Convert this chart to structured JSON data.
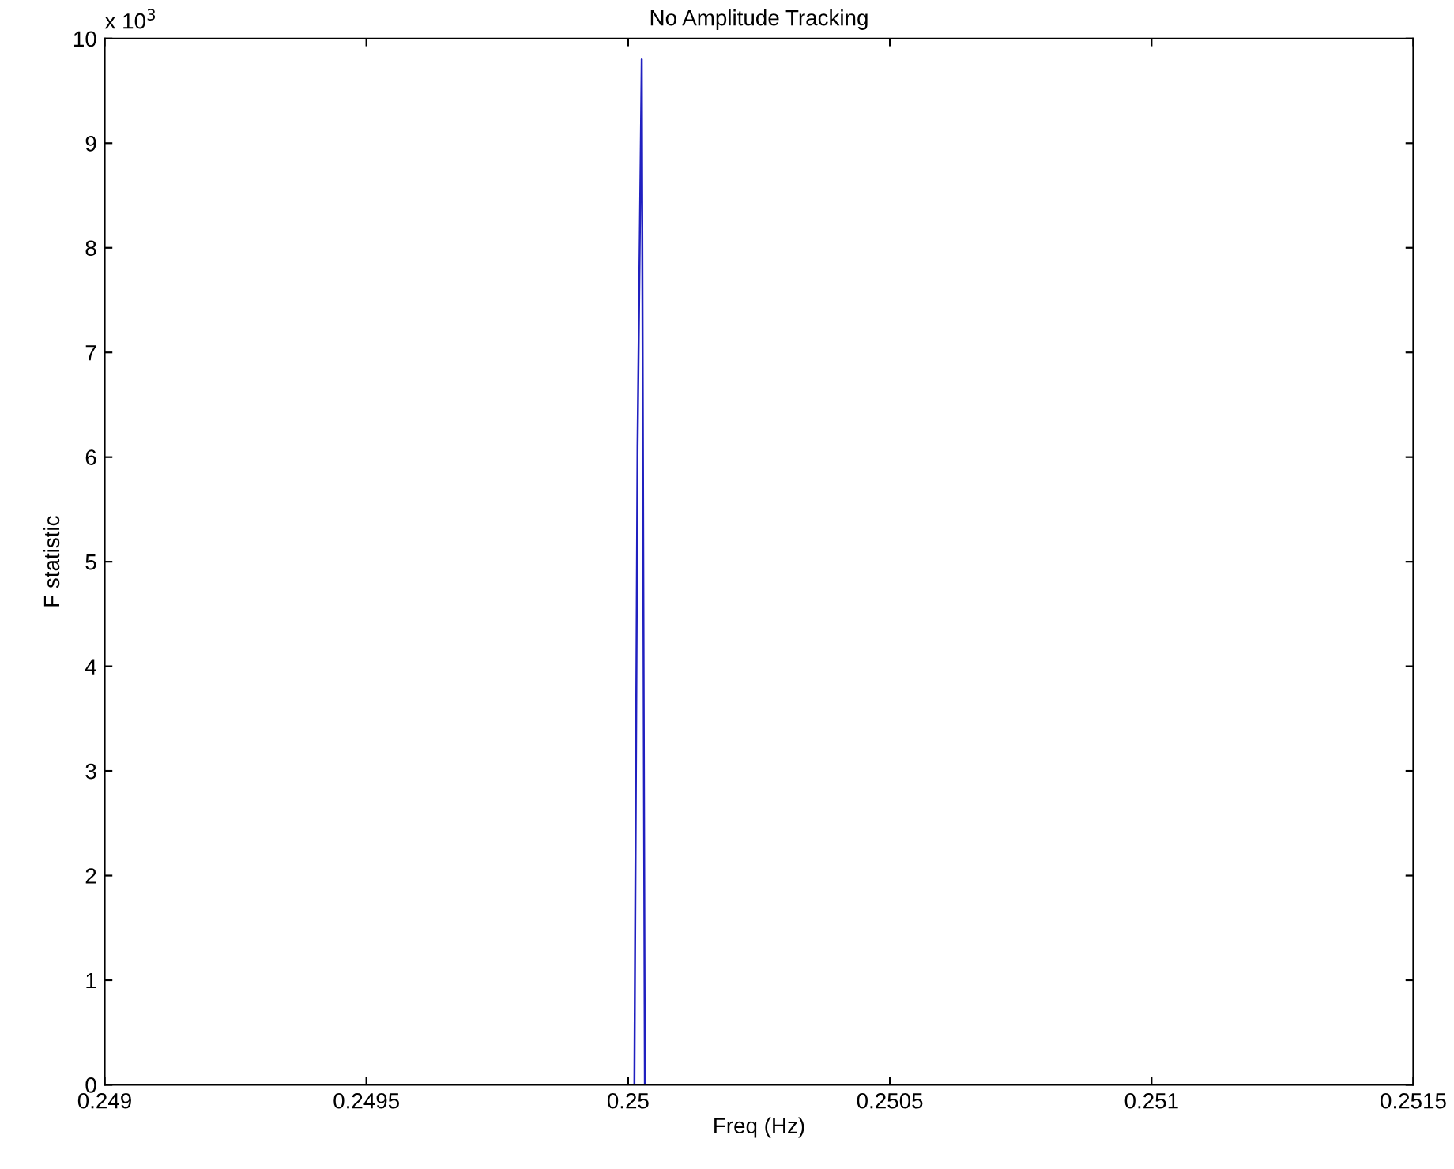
{
  "chart_data": {
    "type": "line",
    "title": "No Amplitude Tracking",
    "xlabel": "Freq (Hz)",
    "ylabel": "F statistic",
    "annotations": [
      "x 10$^{3}$"
    ],
    "series": [
      {
        "color": "#2020c0",
        "x": [
          0.249,
          0.250012,
          0.250018,
          0.250026,
          0.250032,
          0.251,
          0.2515
        ],
        "values": [
          0,
          0,
          6.1,
          9.8,
          0,
          0,
          0
        ]
      }
    ],
    "xlim": [
      0.249,
      0.2515
    ],
    "xticks": [
      0.249,
      0.2495,
      0.25,
      0.2505,
      0.251,
      0.2515
    ],
    "ylim": [
      0,
      10
    ],
    "yticks": [
      0,
      1,
      2,
      3,
      4,
      5,
      6,
      7,
      8,
      9,
      10
    ],
    "grid": false,
    "legend": false
  }
}
